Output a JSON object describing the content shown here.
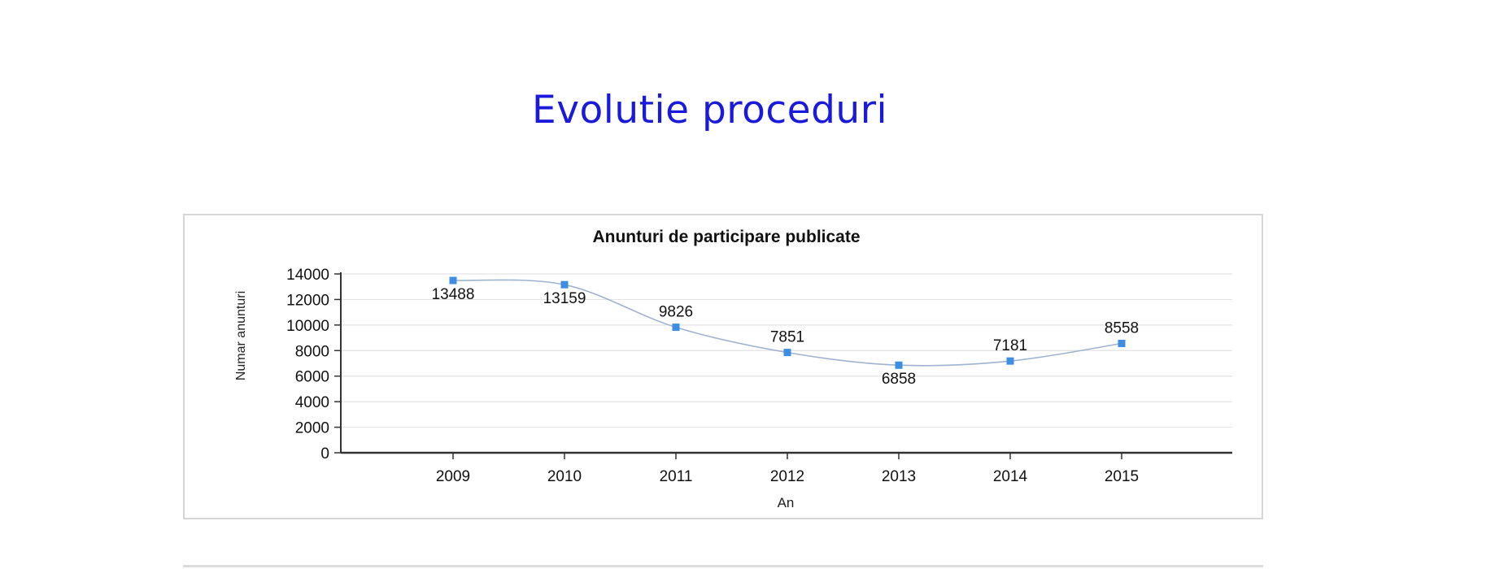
{
  "page": {
    "title": "Evolutie proceduri"
  },
  "chart_data": {
    "type": "line",
    "title": "Anunturi de participare publicate",
    "xlabel": "An",
    "ylabel": "Numar anunturi",
    "categories": [
      "2009",
      "2010",
      "2011",
      "2012",
      "2013",
      "2014",
      "2015"
    ],
    "values": [
      13488,
      13159,
      9826,
      7851,
      6858,
      7181,
      8558
    ],
    "label_position": [
      "below",
      "below",
      "above",
      "above",
      "below",
      "above",
      "above"
    ],
    "ylim": [
      0,
      14000
    ],
    "yticks": [
      0,
      2000,
      4000,
      6000,
      8000,
      10000,
      12000,
      14000
    ],
    "grid": true,
    "legend": "none",
    "smooth": true,
    "colors": {
      "line": "#9fb3cf",
      "marker": "#3d8ee0",
      "grid": "#e3e3e3",
      "axis": "#333333",
      "text": "#111111"
    }
  }
}
